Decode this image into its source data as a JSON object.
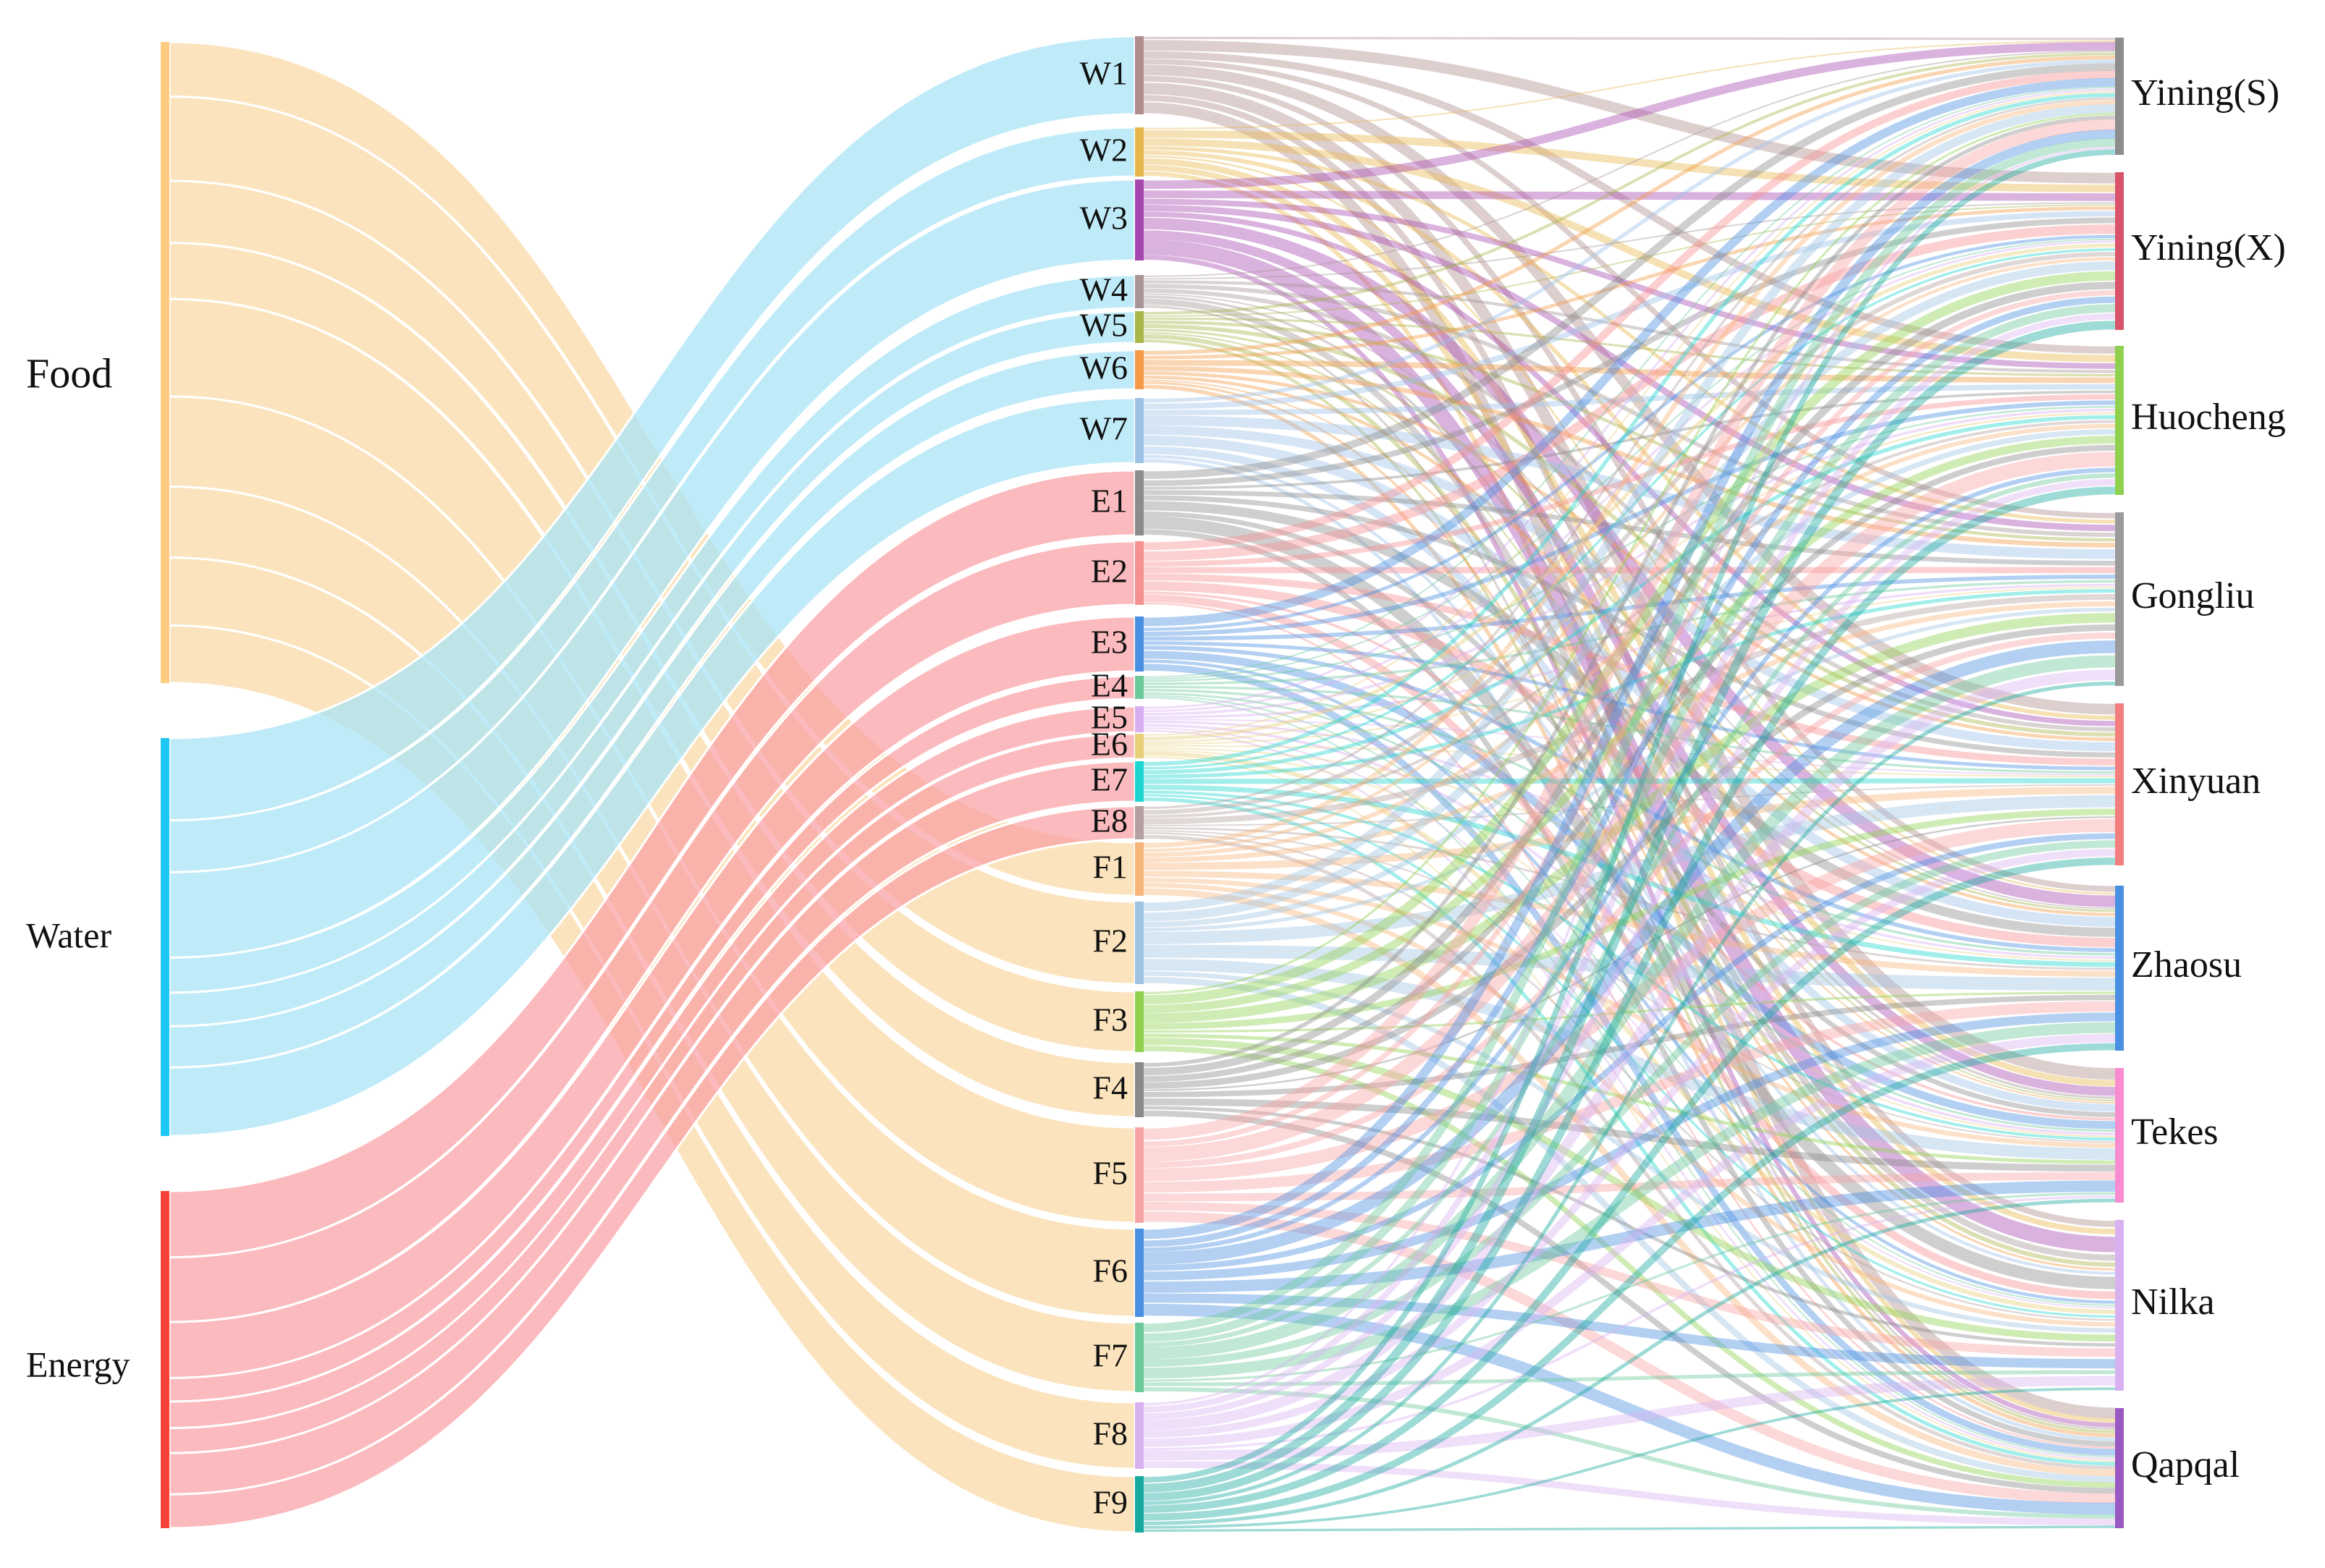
{
  "diagram": {
    "type": "sankey",
    "sources": [
      {
        "id": "Food",
        "label": "Food",
        "color": "#FFCC80",
        "flow": "#FAD9A3"
      },
      {
        "id": "Water",
        "label": "Water",
        "color": "#1EC8F5",
        "flow": "#A6E3F7"
      },
      {
        "id": "Energy",
        "label": "Energy",
        "color": "#F44336",
        "flow": "#F9A0A4"
      }
    ],
    "middle": [
      {
        "id": "W1",
        "label": "W1",
        "source": "Water",
        "color": "#B08C8C"
      },
      {
        "id": "W2",
        "label": "W2",
        "source": "Water",
        "color": "#E6B84C"
      },
      {
        "id": "W3",
        "label": "W3",
        "source": "Water",
        "color": "#A647B0"
      },
      {
        "id": "W4",
        "label": "W4",
        "source": "Water",
        "color": "#A89696"
      },
      {
        "id": "W5",
        "label": "W5",
        "source": "Water",
        "color": "#A9B64A"
      },
      {
        "id": "W6",
        "label": "W6",
        "source": "Water",
        "color": "#F49A47"
      },
      {
        "id": "W7",
        "label": "W7",
        "source": "Water",
        "color": "#9EC2E6"
      },
      {
        "id": "E1",
        "label": "E1",
        "source": "Energy",
        "color": "#8C8C8C"
      },
      {
        "id": "E2",
        "label": "E2",
        "source": "Energy",
        "color": "#F79090"
      },
      {
        "id": "E3",
        "label": "E3",
        "source": "Energy",
        "color": "#4A90E2"
      },
      {
        "id": "E4",
        "label": "E4",
        "source": "Energy",
        "color": "#6CC99A"
      },
      {
        "id": "E5",
        "label": "E5",
        "source": "Energy",
        "color": "#D8AEF0"
      },
      {
        "id": "E6",
        "label": "E6",
        "source": "Energy",
        "color": "#E9CF7A"
      },
      {
        "id": "E7",
        "label": "E7",
        "source": "Energy",
        "color": "#1ED6D0"
      },
      {
        "id": "E8",
        "label": "E8",
        "source": "Energy",
        "color": "#B4A0A0"
      },
      {
        "id": "F1",
        "label": "F1",
        "source": "Food",
        "color": "#F7B57A"
      },
      {
        "id": "F2",
        "label": "F2",
        "source": "Food",
        "color": "#9FC3E3"
      },
      {
        "id": "F3",
        "label": "F3",
        "source": "Food",
        "color": "#8FD14F"
      },
      {
        "id": "F4",
        "label": "F4",
        "source": "Food",
        "color": "#8A8A8A"
      },
      {
        "id": "F5",
        "label": "F5",
        "source": "Food",
        "color": "#F7A3A3"
      },
      {
        "id": "F6",
        "label": "F6",
        "source": "Food",
        "color": "#4A90E2"
      },
      {
        "id": "F7",
        "label": "F7",
        "source": "Food",
        "color": "#6CC99A"
      },
      {
        "id": "F8",
        "label": "F8",
        "source": "Food",
        "color": "#D8B2F0"
      },
      {
        "id": "F9",
        "label": "F9",
        "source": "Food",
        "color": "#17A99E"
      }
    ],
    "targets": [
      {
        "id": "YiningS",
        "label": "Yining(S)",
        "color": "#8C8C8C"
      },
      {
        "id": "YiningX",
        "label": "Yining(X)",
        "color": "#D9536B"
      },
      {
        "id": "Huocheng",
        "label": "Huocheng",
        "color": "#8FD14F"
      },
      {
        "id": "Gongliu",
        "label": "Gongliu",
        "color": "#9A9A9A"
      },
      {
        "id": "Xinyuan",
        "label": "Xinyuan",
        "color": "#F27E7E"
      },
      {
        "id": "Zhaosu",
        "label": "Zhaosu",
        "color": "#4A90E2"
      },
      {
        "id": "Tekes",
        "label": "Tekes",
        "color": "#F78CD0"
      },
      {
        "id": "Nilka",
        "label": "Nilka",
        "color": "#D8B2F0"
      },
      {
        "id": "Qapqal",
        "label": "Qapqal",
        "color": "#9A58C2"
      }
    ]
  }
}
